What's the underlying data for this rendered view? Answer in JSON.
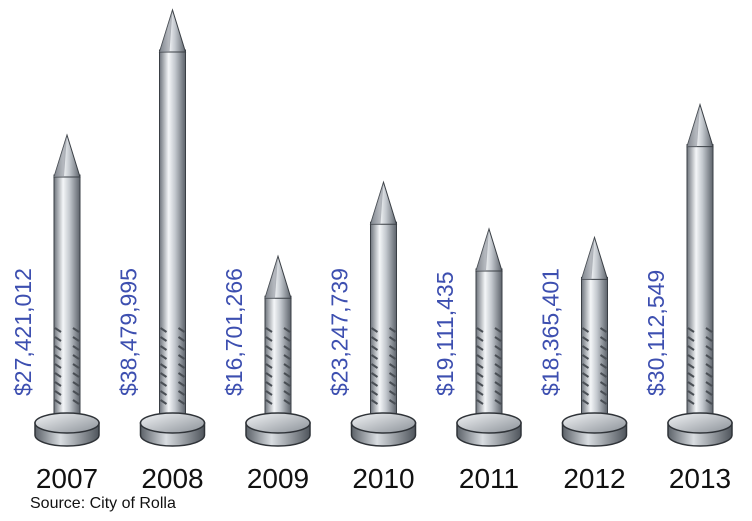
{
  "chart_data": {
    "type": "bar",
    "categories": [
      "2007",
      "2008",
      "2009",
      "2010",
      "2011",
      "2012",
      "2013"
    ],
    "values": [
      27421012,
      38479995,
      16701266,
      23247739,
      19111435,
      18365401,
      30112549
    ],
    "value_labels": [
      "$27,421,012",
      "$38,479,995",
      "$16,701,266",
      "$23,247,739",
      "$19,111,435",
      "$18,365,401",
      "$30,112,549"
    ],
    "source": "Source: City of Rolla"
  }
}
